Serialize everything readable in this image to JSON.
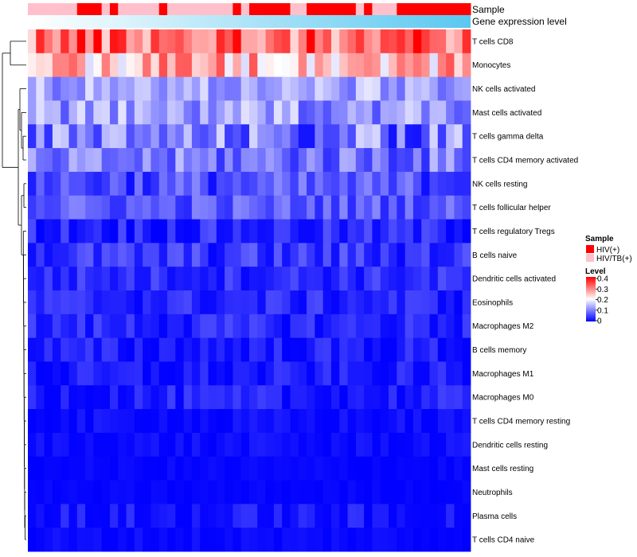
{
  "chart_data": {
    "type": "heatmap",
    "title": "",
    "n_samples": 54,
    "annotation_tracks": [
      "Sample",
      "Gene expression level"
    ],
    "sample_group_runs": [
      {
        "group": "HIV/TB(+)",
        "count": 6
      },
      {
        "group": "HIV(+)",
        "count": 3
      },
      {
        "group": "HIV/TB(+)",
        "count": 1
      },
      {
        "group": "HIV(+)",
        "count": 1
      },
      {
        "group": "HIV/TB(+)",
        "count": 5
      },
      {
        "group": "HIV(+)",
        "count": 1
      },
      {
        "group": "HIV/TB(+)",
        "count": 8
      },
      {
        "group": "HIV(+)",
        "count": 1
      },
      {
        "group": "HIV/TB(+)",
        "count": 1
      },
      {
        "group": "HIV(+)",
        "count": 5
      },
      {
        "group": "HIV/TB(+)",
        "count": 2
      },
      {
        "group": "HIV(+)",
        "count": 6
      },
      {
        "group": "HIV/TB(+)",
        "count": 1
      },
      {
        "group": "HIV(+)",
        "count": 1
      },
      {
        "group": "HIV/TB(+)",
        "count": 3
      },
      {
        "group": "HIV(+)",
        "count": 9
      }
    ],
    "expression_gradient": [
      "#ffffff",
      "#5ac8f0"
    ],
    "rows": [
      "T cells CD8",
      "Monocytes",
      "NK cells activated",
      "Mast cells activated",
      "T cells gamma delta",
      "T cells CD4 memory activated",
      "NK cells resting",
      "T cells follicular helper",
      "T cells regulatory  Tregs",
      "B cells naive",
      "Dendritic cells activated",
      "Eosinophils",
      "Macrophages M2",
      "B cells memory",
      "Macrophages M1",
      "Macrophages M0",
      "T cells CD4 memory resting",
      "Dendritic cells resting",
      "Mast cells resting",
      "Neutrophils",
      "Plasma cells",
      "T cells CD4 naive"
    ],
    "row_means": [
      0.32,
      0.26,
      0.13,
      0.12,
      0.09,
      0.09,
      0.06,
      0.07,
      0.03,
      0.04,
      0.035,
      0.03,
      0.03,
      0.02,
      0.015,
      0.02,
      0.008,
      0.008,
      0.004,
      0.003,
      0.012,
      0.006
    ],
    "row_spreads": [
      0.09,
      0.09,
      0.05,
      0.06,
      0.08,
      0.06,
      0.05,
      0.04,
      0.035,
      0.04,
      0.03,
      0.03,
      0.03,
      0.03,
      0.03,
      0.03,
      0.015,
      0.015,
      0.008,
      0.006,
      0.03,
      0.012
    ],
    "color_scale": {
      "min": 0,
      "max": 0.4,
      "colors": [
        "#0000ff",
        "#ffffff",
        "#ff0000"
      ],
      "ticks": [
        0.4,
        0.3,
        0.2,
        0.1,
        0
      ]
    },
    "dendrogram": {
      "type": "row",
      "rows_ordered_as_shown": true
    },
    "legend": {
      "position": "right",
      "sample_title": "Sample",
      "sample_items": [
        {
          "label": "HIV(+)",
          "color": "#ff0000"
        },
        {
          "label": "HIV/TB(+)",
          "color": "#ffc0cb"
        }
      ],
      "level_title": "Level",
      "level_tick_labels": [
        "0.4",
        "0.3",
        "0.2",
        "0.1",
        "0"
      ]
    }
  }
}
